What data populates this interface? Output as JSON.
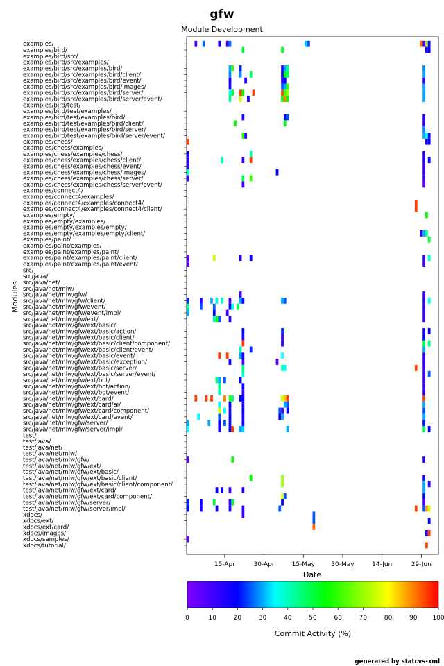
{
  "chart_data": {
    "type": "heatmap",
    "title": "gfw",
    "subtitle": "Module Development",
    "xlabel": "Date",
    "ylabel": "Modules",
    "x_tick_labels": [
      "15-Apr",
      "30-Apr",
      "15-May",
      "30-May",
      "14-Jun",
      "29-Jun"
    ],
    "x_tick_days": [
      14,
      29,
      44,
      59,
      74,
      89
    ],
    "x_range_days": [
      0,
      95
    ],
    "x_range_start_label": "1-Apr",
    "colorbar": {
      "label": "Commit Activity (%)",
      "ticks": [
        0,
        10,
        20,
        30,
        40,
        50,
        60,
        70,
        80,
        90,
        100
      ],
      "range": [
        0,
        100
      ]
    },
    "modules": [
      "examples/",
      "examples/bird/",
      "examples/bird/src/",
      "examples/bird/src/examples/",
      "examples/bird/src/examples/bird/",
      "examples/bird/src/examples/bird/client/",
      "examples/bird/src/examples/bird/event/",
      "examples/bird/src/examples/bird/images/",
      "examples/bird/src/examples/bird/server/",
      "examples/bird/src/examples/bird/server/event/",
      "examples/bird/test/",
      "examples/bird/test/examples/",
      "examples/bird/test/examples/bird/",
      "examples/bird/test/examples/bird/client/",
      "examples/bird/test/examples/bird/server/",
      "examples/bird/test/examples/bird/server/event/",
      "examples/chess/",
      "examples/chess/examples/",
      "examples/chess/examples/chess/",
      "examples/chess/examples/chess/client/",
      "examples/chess/examples/chess/event/",
      "examples/chess/examples/chess/images/",
      "examples/chess/examples/chess/server/",
      "examples/chess/examples/chess/server/event/",
      "examples/connect4/",
      "examples/connect4/examples/",
      "examples/connect4/examples/connect4/",
      "examples/connect4/examples/connect4/client/",
      "examples/empty/",
      "examples/empty/examples/",
      "examples/empty/examples/empty/",
      "examples/empty/examples/empty/client/",
      "examples/paint/",
      "examples/paint/examples/",
      "examples/paint/examples/paint/",
      "examples/paint/examples/paint/client/",
      "examples/paint/examples/paint/event/",
      "src/",
      "src/java/",
      "src/java/net/",
      "src/java/net/mlw/",
      "src/java/net/mlw/gfw/",
      "src/java/net/mlw/gfw/client/",
      "src/java/net/mlw/gfw/event/",
      "src/java/net/mlw/gfw/event/impl/",
      "src/java/net/mlw/gfw/ext/",
      "src/java/net/mlw/gfw/ext/basic/",
      "src/java/net/mlw/gfw/ext/basic/action/",
      "src/java/net/mlw/gfw/ext/basic/client/",
      "src/java/net/mlw/gfw/ext/basic/client/component/",
      "src/java/net/mlw/gfw/ext/basic/client/event/",
      "src/java/net/mlw/gfw/ext/basic/event/",
      "src/java/net/mlw/gfw/ext/basic/exception/",
      "src/java/net/mlw/gfw/ext/basic/server/",
      "src/java/net/mlw/gfw/ext/basic/server/event/",
      "src/java/net/mlw/gfw/ext/bot/",
      "src/java/net/mlw/gfw/ext/bot/action/",
      "src/java/net/mlw/gfw/ext/bot/event/",
      "src/java/net/mlw/gfw/ext/card/",
      "src/java/net/mlw/gfw/ext/card/ai/",
      "src/java/net/mlw/gfw/ext/card/component/",
      "src/java/net/mlw/gfw/ext/card/event/",
      "src/java/net/mlw/gfw/server/",
      "src/java/net/mlw/gfw/server/impl/",
      "test/",
      "test/java/",
      "test/java/net/",
      "test/java/net/mlw/",
      "test/java/net/mlw/gfw/",
      "test/java/net/mlw/gfw/ext/",
      "test/java/net/mlw/gfw/ext/basic/",
      "test/java/net/mlw/gfw/ext/basic/client/",
      "test/java/net/mlw/gfw/ext/basic/client/component/",
      "test/java/net/mlw/gfw/ext/card/",
      "test/java/net/mlw/gfw/ext/card/component/",
      "test/java/net/mlw/gfw/server/",
      "test/java/net/mlw/gfw/server/impl/",
      "xdocs/",
      "xdocs/ext/",
      "xdocs/ext/card/",
      "xdocs/images/",
      "xdocs/samples/",
      "xdocs/tutorial/"
    ],
    "cells": [
      [
        0,
        3,
        8
      ],
      [
        0,
        6,
        26
      ],
      [
        0,
        12,
        18
      ],
      [
        0,
        15,
        12
      ],
      [
        0,
        16,
        26
      ],
      [
        0,
        45,
        32
      ],
      [
        0,
        46,
        24
      ],
      [
        0,
        89,
        92
      ],
      [
        0,
        90,
        8
      ],
      [
        0,
        91,
        70
      ],
      [
        0,
        92,
        15
      ],
      [
        1,
        21,
        50
      ],
      [
        1,
        36,
        52
      ],
      [
        1,
        91,
        15
      ],
      [
        1,
        92,
        18
      ],
      [
        4,
        16,
        30
      ],
      [
        4,
        17,
        60
      ],
      [
        4,
        20,
        22
      ],
      [
        4,
        36,
        12
      ],
      [
        4,
        37,
        30
      ],
      [
        4,
        38,
        45
      ],
      [
        4,
        90,
        28
      ],
      [
        5,
        16,
        28
      ],
      [
        5,
        20,
        28
      ],
      [
        5,
        24,
        48
      ],
      [
        5,
        36,
        20
      ],
      [
        5,
        37,
        55
      ],
      [
        5,
        38,
        48
      ],
      [
        5,
        90,
        30
      ],
      [
        6,
        16,
        18
      ],
      [
        6,
        22,
        15
      ],
      [
        6,
        36,
        12
      ],
      [
        6,
        37,
        20
      ],
      [
        6,
        90,
        12
      ],
      [
        7,
        16,
        15
      ],
      [
        7,
        36,
        25
      ],
      [
        7,
        37,
        30
      ],
      [
        7,
        38,
        60
      ],
      [
        7,
        90,
        30
      ],
      [
        8,
        16,
        35
      ],
      [
        8,
        17,
        50
      ],
      [
        8,
        20,
        95
      ],
      [
        8,
        21,
        55
      ],
      [
        8,
        25,
        95
      ],
      [
        8,
        36,
        95
      ],
      [
        8,
        37,
        60
      ],
      [
        8,
        38,
        70
      ],
      [
        8,
        90,
        30
      ],
      [
        9,
        16,
        45
      ],
      [
        9,
        20,
        75
      ],
      [
        9,
        23,
        15
      ],
      [
        9,
        36,
        55
      ],
      [
        9,
        37,
        90
      ],
      [
        9,
        38,
        55
      ],
      [
        9,
        90,
        30
      ],
      [
        12,
        21,
        15
      ],
      [
        12,
        37,
        20
      ],
      [
        12,
        38,
        25
      ],
      [
        12,
        90,
        15
      ],
      [
        13,
        18,
        55
      ],
      [
        13,
        37,
        52
      ],
      [
        13,
        90,
        12
      ],
      [
        14,
        90,
        28
      ],
      [
        15,
        21,
        60
      ],
      [
        15,
        22,
        15
      ],
      [
        15,
        90,
        30
      ],
      [
        15,
        91,
        35
      ],
      [
        15,
        92,
        20
      ],
      [
        16,
        0,
        95
      ],
      [
        16,
        91,
        15
      ],
      [
        16,
        92,
        20
      ],
      [
        18,
        0,
        18
      ],
      [
        18,
        24,
        40
      ],
      [
        18,
        90,
        15
      ],
      [
        19,
        0,
        12
      ],
      [
        19,
        13,
        40
      ],
      [
        19,
        21,
        10
      ],
      [
        19,
        24,
        95
      ],
      [
        19,
        90,
        15
      ],
      [
        19,
        92,
        20
      ],
      [
        20,
        0,
        12
      ],
      [
        20,
        90,
        12
      ],
      [
        21,
        0,
        40
      ],
      [
        21,
        34,
        20
      ],
      [
        21,
        90,
        12
      ],
      [
        22,
        0,
        10
      ],
      [
        22,
        21,
        50
      ],
      [
        22,
        24,
        60
      ],
      [
        22,
        90,
        10
      ],
      [
        23,
        21,
        10
      ],
      [
        23,
        90,
        5
      ],
      [
        26,
        87,
        95
      ],
      [
        27,
        87,
        95
      ],
      [
        28,
        91,
        55
      ],
      [
        31,
        89,
        12
      ],
      [
        31,
        90,
        30
      ],
      [
        31,
        91,
        45
      ],
      [
        32,
        92,
        50
      ],
      [
        35,
        0,
        5
      ],
      [
        35,
        10,
        75
      ],
      [
        35,
        20,
        15
      ],
      [
        35,
        24,
        18
      ],
      [
        35,
        90,
        10
      ],
      [
        35,
        92,
        38
      ],
      [
        36,
        0,
        5
      ],
      [
        36,
        90,
        10
      ],
      [
        41,
        20,
        8
      ],
      [
        41,
        90,
        10
      ],
      [
        42,
        0,
        22
      ],
      [
        42,
        5,
        15
      ],
      [
        42,
        9,
        30
      ],
      [
        42,
        11,
        38
      ],
      [
        42,
        13,
        40
      ],
      [
        42,
        16,
        10
      ],
      [
        42,
        20,
        30
      ],
      [
        42,
        21,
        18
      ],
      [
        42,
        36,
        30
      ],
      [
        42,
        37,
        25
      ],
      [
        42,
        90,
        15
      ],
      [
        42,
        92,
        35
      ],
      [
        43,
        0,
        45
      ],
      [
        43,
        5,
        25
      ],
      [
        43,
        10,
        25
      ],
      [
        43,
        16,
        18
      ],
      [
        43,
        17,
        35
      ],
      [
        43,
        19,
        50
      ],
      [
        43,
        90,
        12
      ],
      [
        44,
        0,
        30
      ],
      [
        44,
        10,
        20
      ],
      [
        44,
        15,
        10
      ],
      [
        44,
        90,
        10
      ],
      [
        45,
        10,
        40
      ],
      [
        45,
        11,
        55
      ],
      [
        45,
        12,
        25
      ],
      [
        45,
        16,
        15
      ],
      [
        45,
        90,
        10
      ],
      [
        47,
        21,
        20
      ],
      [
        47,
        36,
        22
      ],
      [
        47,
        90,
        15
      ],
      [
        47,
        92,
        20
      ],
      [
        48,
        21,
        15
      ],
      [
        48,
        36,
        12
      ],
      [
        48,
        90,
        20
      ],
      [
        49,
        21,
        95
      ],
      [
        49,
        36,
        15
      ],
      [
        49,
        90,
        50
      ],
      [
        49,
        92,
        45
      ],
      [
        50,
        20,
        40
      ],
      [
        50,
        24,
        22
      ],
      [
        50,
        90,
        30
      ],
      [
        51,
        12,
        95
      ],
      [
        51,
        15,
        95
      ],
      [
        51,
        20,
        30
      ],
      [
        51,
        21,
        15
      ],
      [
        51,
        36,
        35
      ],
      [
        51,
        90,
        12
      ],
      [
        52,
        16,
        18
      ],
      [
        52,
        21,
        10
      ],
      [
        52,
        34,
        8
      ],
      [
        52,
        90,
        12
      ],
      [
        53,
        21,
        45
      ],
      [
        53,
        36,
        40
      ],
      [
        53,
        37,
        35
      ],
      [
        53,
        87,
        95
      ],
      [
        53,
        90,
        10
      ],
      [
        54,
        21,
        40
      ],
      [
        54,
        90,
        10
      ],
      [
        54,
        92,
        25
      ],
      [
        55,
        11,
        45
      ],
      [
        55,
        12,
        30
      ],
      [
        55,
        14,
        25
      ],
      [
        55,
        20,
        20
      ],
      [
        55,
        90,
        10
      ],
      [
        56,
        12,
        45
      ],
      [
        56,
        21,
        20
      ],
      [
        56,
        90,
        10
      ],
      [
        57,
        12,
        40
      ],
      [
        57,
        21,
        12
      ],
      [
        57,
        90,
        15
      ],
      [
        58,
        3,
        95
      ],
      [
        58,
        7,
        95
      ],
      [
        58,
        9,
        95
      ],
      [
        58,
        14,
        90
      ],
      [
        58,
        16,
        60
      ],
      [
        58,
        17,
        45
      ],
      [
        58,
        20,
        20
      ],
      [
        58,
        21,
        18
      ],
      [
        58,
        36,
        75
      ],
      [
        58,
        37,
        85
      ],
      [
        58,
        38,
        95
      ],
      [
        58,
        90,
        95
      ],
      [
        59,
        12,
        35
      ],
      [
        59,
        16,
        20
      ],
      [
        59,
        21,
        15
      ],
      [
        59,
        37,
        30
      ],
      [
        59,
        38,
        25
      ],
      [
        59,
        90,
        30
      ],
      [
        60,
        12,
        75
      ],
      [
        60,
        14,
        35
      ],
      [
        60,
        16,
        15
      ],
      [
        60,
        21,
        20
      ],
      [
        60,
        35,
        25
      ],
      [
        60,
        36,
        10
      ],
      [
        60,
        38,
        20
      ],
      [
        60,
        90,
        25
      ],
      [
        61,
        4,
        35
      ],
      [
        61,
        12,
        25
      ],
      [
        61,
        16,
        20
      ],
      [
        61,
        21,
        15
      ],
      [
        61,
        35,
        20
      ],
      [
        61,
        36,
        30
      ],
      [
        61,
        90,
        30
      ],
      [
        62,
        0,
        30
      ],
      [
        62,
        8,
        30
      ],
      [
        62,
        12,
        18
      ],
      [
        62,
        14,
        25
      ],
      [
        62,
        16,
        18
      ],
      [
        62,
        21,
        18
      ],
      [
        62,
        90,
        20
      ],
      [
        63,
        0,
        35
      ],
      [
        63,
        12,
        15
      ],
      [
        63,
        16,
        18
      ],
      [
        63,
        17,
        95
      ],
      [
        63,
        20,
        30
      ],
      [
        63,
        21,
        32
      ],
      [
        63,
        38,
        30
      ],
      [
        63,
        90,
        48
      ],
      [
        63,
        92,
        20
      ],
      [
        68,
        0,
        5
      ],
      [
        68,
        17,
        55
      ],
      [
        68,
        90,
        12
      ],
      [
        71,
        24,
        55
      ],
      [
        71,
        36,
        70
      ],
      [
        71,
        90,
        15
      ],
      [
        72,
        36,
        70
      ],
      [
        72,
        90,
        30
      ],
      [
        72,
        92,
        15
      ],
      [
        73,
        11,
        20
      ],
      [
        73,
        13,
        18
      ],
      [
        73,
        16,
        12
      ],
      [
        73,
        21,
        15
      ],
      [
        73,
        90,
        30
      ],
      [
        74,
        36,
        78
      ],
      [
        74,
        37,
        25
      ],
      [
        74,
        90,
        20
      ],
      [
        75,
        0,
        22
      ],
      [
        75,
        5,
        18
      ],
      [
        75,
        10,
        50
      ],
      [
        75,
        16,
        12
      ],
      [
        75,
        17,
        50
      ],
      [
        75,
        36,
        20
      ],
      [
        75,
        90,
        10
      ],
      [
        76,
        0,
        20
      ],
      [
        76,
        5,
        15
      ],
      [
        76,
        11,
        18
      ],
      [
        76,
        16,
        15
      ],
      [
        76,
        21,
        12
      ],
      [
        76,
        35,
        25
      ],
      [
        76,
        87,
        95
      ],
      [
        76,
        90,
        25
      ],
      [
        76,
        91,
        88
      ],
      [
        76,
        92,
        75
      ],
      [
        77,
        21,
        10
      ],
      [
        77,
        48,
        25
      ],
      [
        78,
        48,
        25
      ],
      [
        78,
        92,
        20
      ],
      [
        79,
        48,
        92
      ],
      [
        80,
        91,
        15
      ],
      [
        80,
        92,
        95
      ],
      [
        81,
        0,
        5
      ],
      [
        82,
        91,
        95
      ]
    ]
  },
  "footer": {
    "credit": "generated by statcvs-xml"
  }
}
